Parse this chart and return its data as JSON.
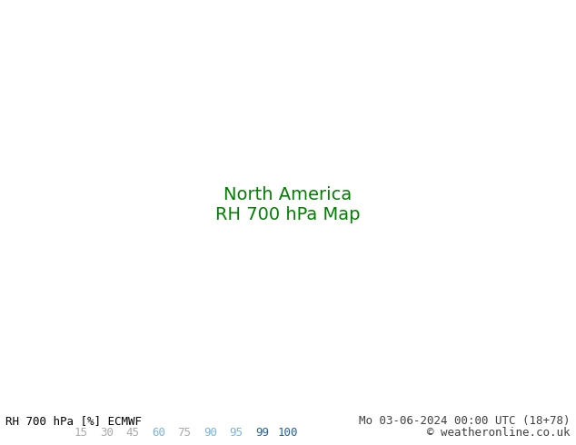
{
  "title_left": "RH 700 hPa [%] ECMWF",
  "title_right": "Mo 03-06-2024 00:00 UTC (18+78)",
  "copyright": "© weatheronline.co.uk",
  "colorbar_values": [
    15,
    30,
    45,
    60,
    75,
    90,
    95,
    99,
    100
  ],
  "colorbar_colors": [
    "#d4f0d4",
    "#b8e8b8",
    "#9cdc9c",
    "#7acc7a",
    "#55bb55",
    "#2ea82e",
    "#1a961a",
    "#0a7a0a",
    "#005500"
  ],
  "colorbar_text_colors": [
    "#aaaaaa",
    "#aaaaaa",
    "#aaaaaa",
    "#7ab4d8",
    "#aaaaaa",
    "#7ab4d8",
    "#7ab4d8",
    "#2060a0",
    "#2060a0"
  ],
  "map_bg_color": "#e8e8e8",
  "land_light_color": "#c8f0c8",
  "land_dark_color": "#55bb55",
  "ocean_color": "#e8e8f8",
  "border_color": "#228822",
  "font_color_left": "#000000",
  "font_color_right": "#404040",
  "font_size_title": 9,
  "font_size_bar": 9,
  "font_size_copyright": 9
}
